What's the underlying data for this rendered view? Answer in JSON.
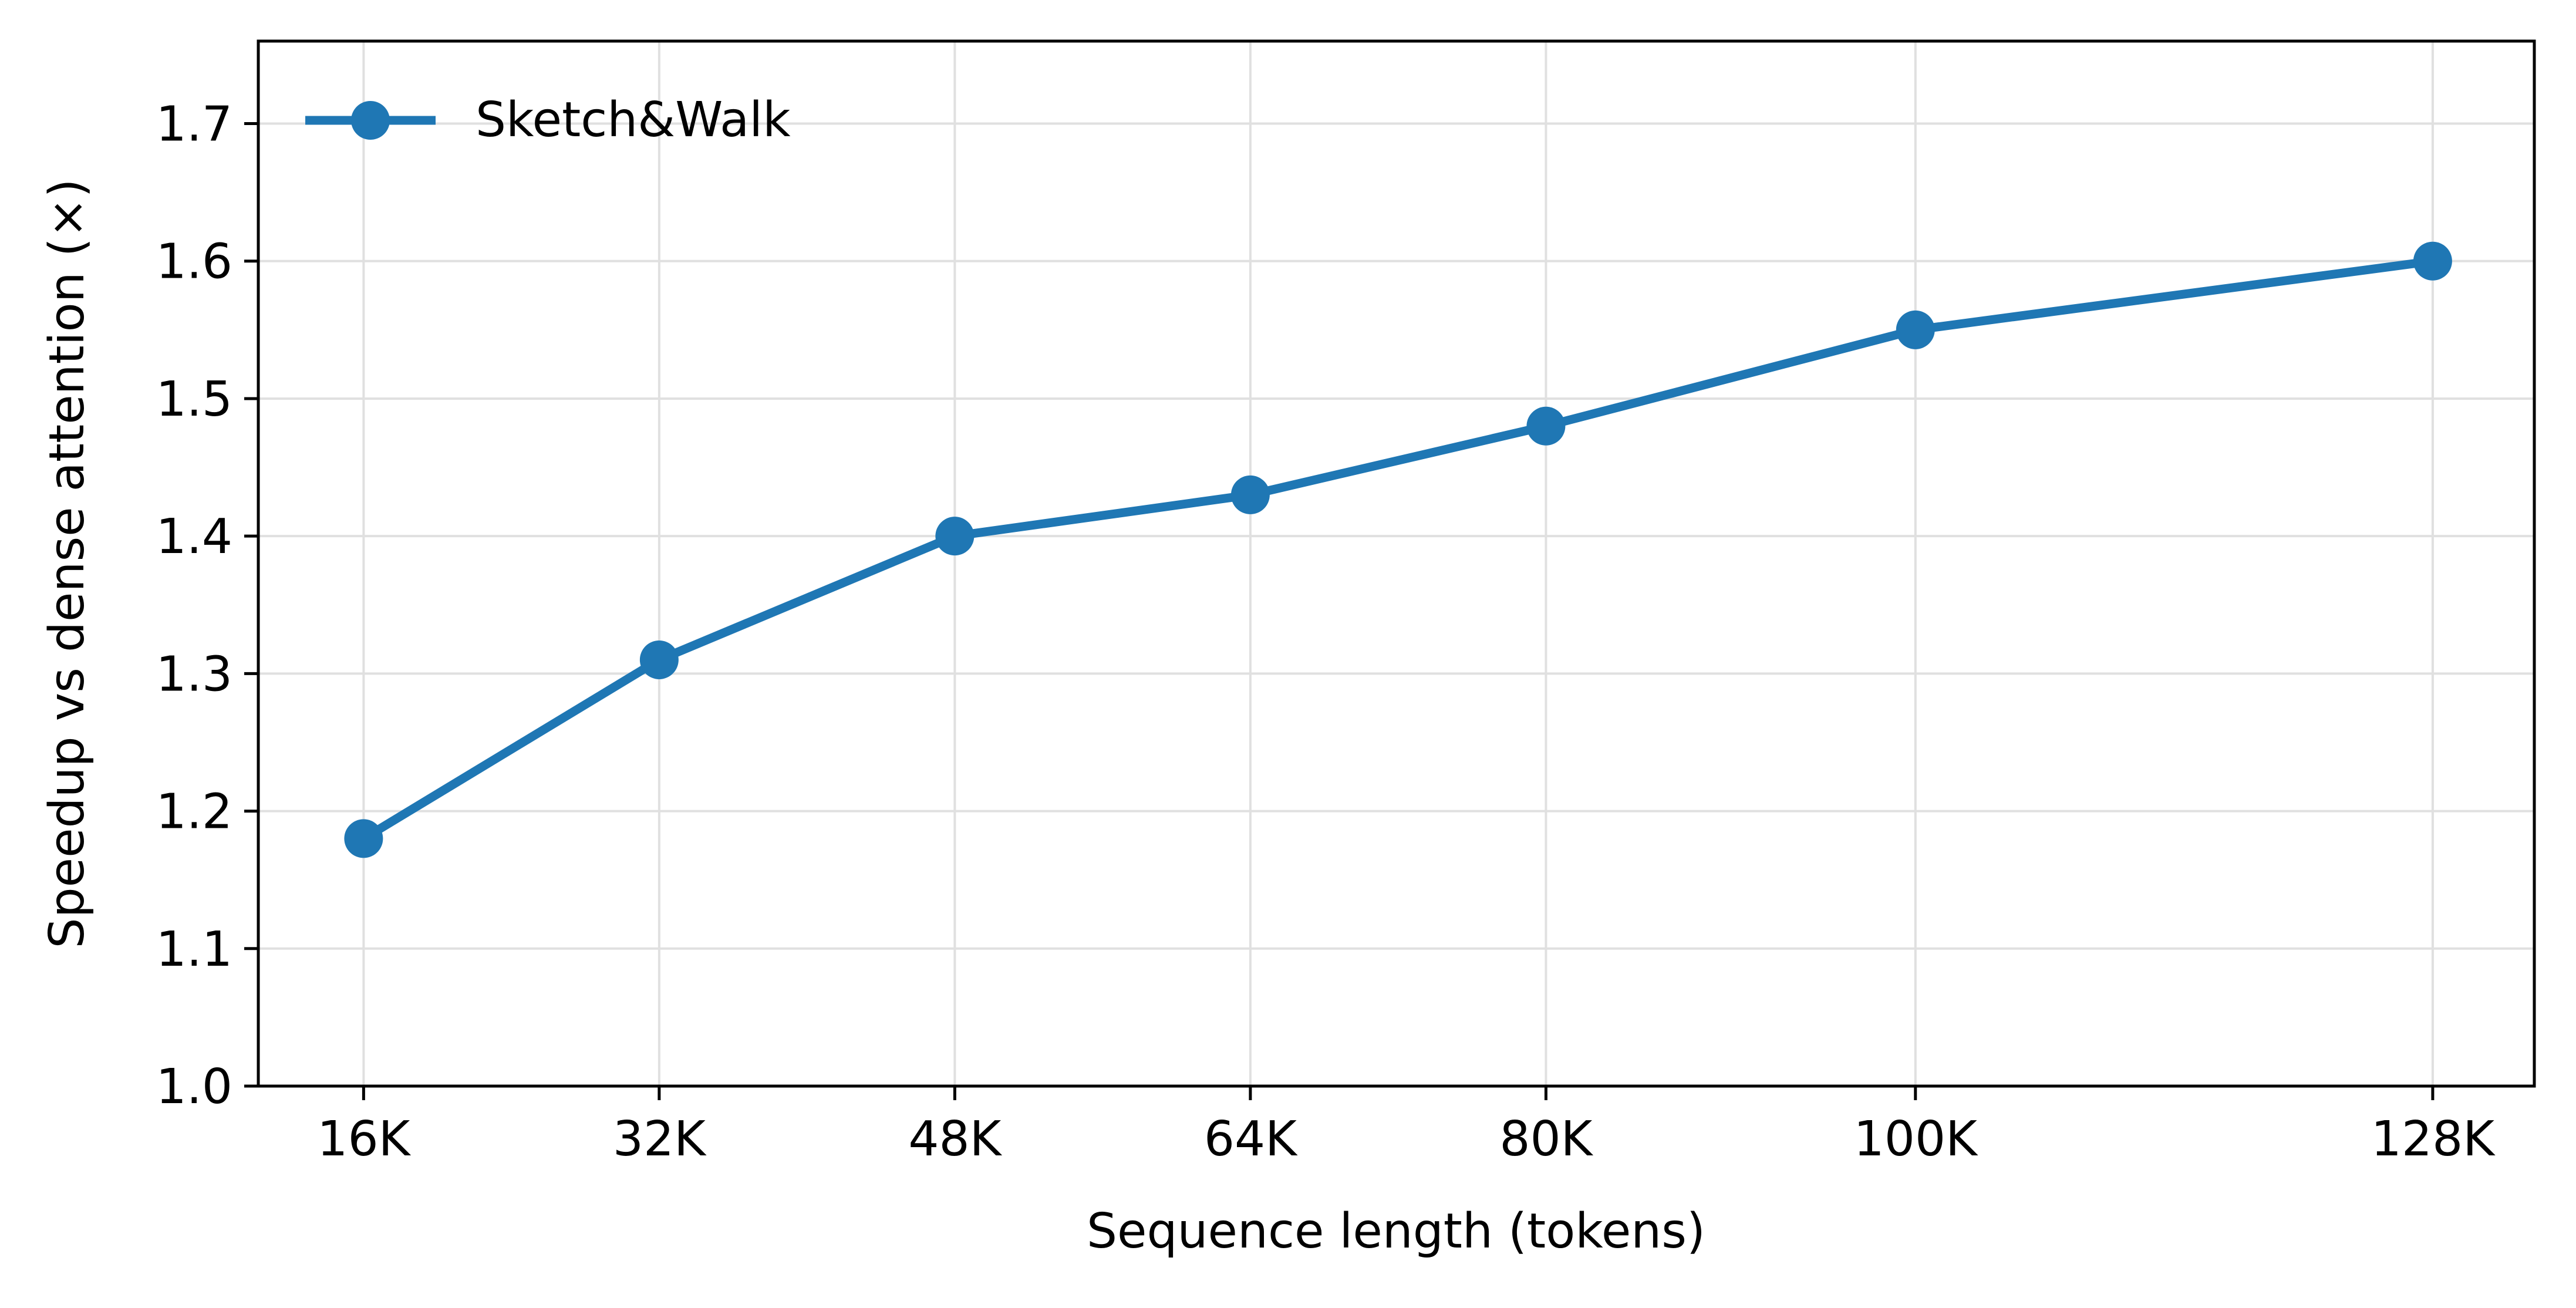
{
  "chart_data": {
    "type": "line",
    "title": "",
    "xlabel": "Sequence length (tokens)",
    "ylabel": "Speedup vs dense attention (×)",
    "x": [
      16,
      32,
      48,
      64,
      80,
      100,
      128
    ],
    "x_unit": "K tokens",
    "x_tick_labels": [
      "16K",
      "32K",
      "48K",
      "64K",
      "80K",
      "100K",
      "128K"
    ],
    "xlim": [
      10.3,
      133.5
    ],
    "ylim": [
      1.0,
      1.76
    ],
    "y_ticks": [
      1.0,
      1.1,
      1.2,
      1.3,
      1.4,
      1.5,
      1.6,
      1.7
    ],
    "y_tick_labels": [
      "1.0",
      "1.1",
      "1.2",
      "1.3",
      "1.4",
      "1.5",
      "1.6",
      "1.7"
    ],
    "grid": true,
    "legend_position": "top-left",
    "series": [
      {
        "name": "Sketch&Walk",
        "color": "#1f77b4",
        "marker": "circle",
        "values": [
          1.18,
          1.31,
          1.4,
          1.43,
          1.48,
          1.55,
          1.6
        ]
      }
    ]
  }
}
